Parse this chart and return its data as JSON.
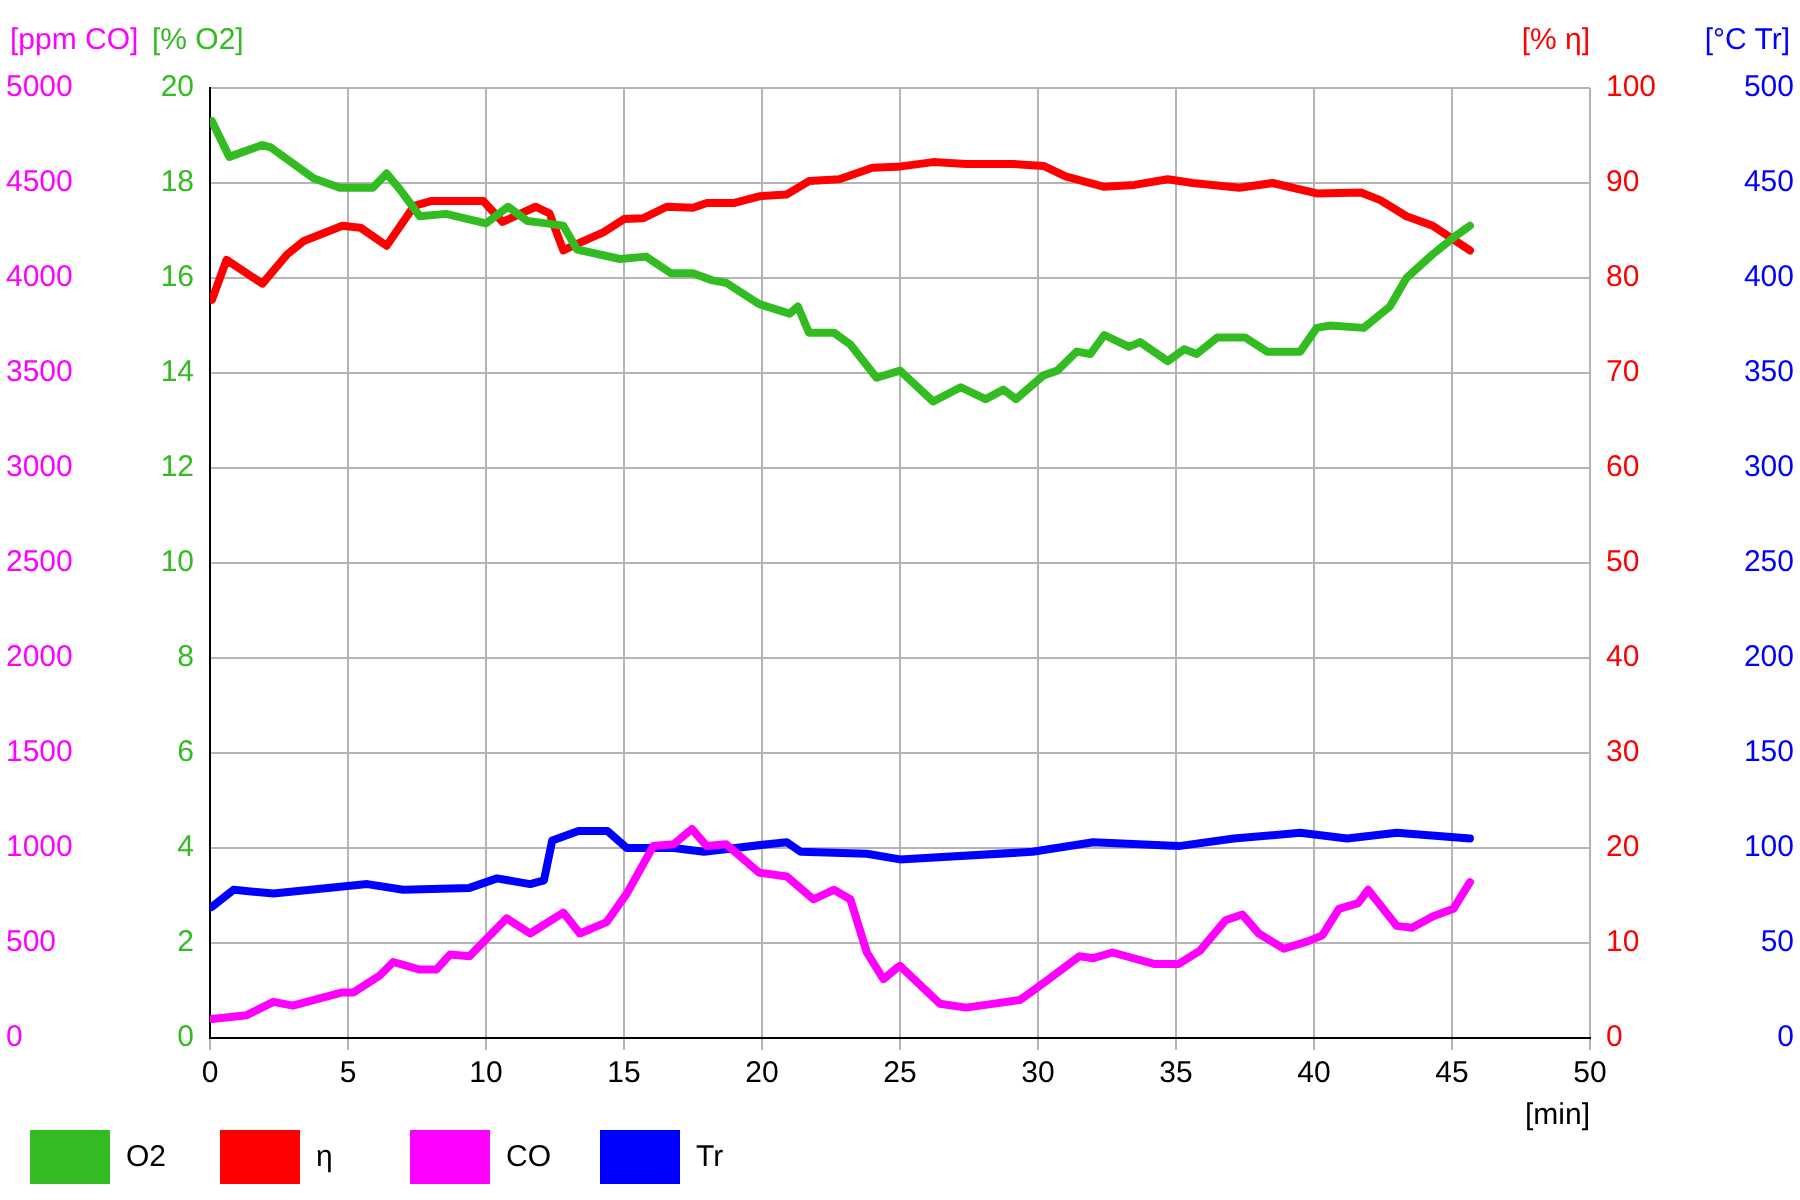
{
  "chart_data": [
    {
      "type": "line",
      "xlabel": "[min]",
      "ylabel": "[% O2]",
      "y2label": "[% η]",
      "xlim": [
        0,
        50
      ],
      "xticks": [
        0,
        5,
        10,
        15,
        20,
        25,
        30,
        35,
        40,
        45,
        50
      ],
      "ylim": [
        0,
        20
      ],
      "yticks": [
        0,
        2,
        4,
        6,
        8,
        10,
        12,
        14,
        16,
        18,
        20
      ],
      "y2lim": [
        0,
        100
      ],
      "y2ticks": [
        0,
        10,
        20,
        30,
        40,
        50,
        60,
        70,
        80,
        90,
        100
      ],
      "grid": true,
      "legend": "bottom",
      "series": [
        {
          "name": "O2",
          "color": "#33bb22",
          "x": [
            0.07,
            0.7,
            1.9,
            2.2,
            3.75,
            4.7,
            5.9,
            6.4,
            6.9,
            7.6,
            8.55,
            10.0,
            10.8,
            11.5,
            12.2,
            12.8,
            13.3,
            14.85,
            15.8,
            16.7,
            17.5,
            18.2,
            18.7,
            19.9,
            21.0,
            21.3,
            21.7,
            22.6,
            23.2,
            24.15,
            25.0,
            26.2,
            27.2,
            28.1,
            28.75,
            29.2,
            30.2,
            30.7,
            31.4,
            31.9,
            32.4,
            33.3,
            33.7,
            34.7,
            35.3,
            35.75,
            36.5,
            37.5,
            38.3,
            39.5,
            40.1,
            40.6,
            41.8,
            42.75,
            43.35,
            44.3,
            45.05,
            45.65
          ],
          "values": [
            19.3,
            18.55,
            18.8,
            18.75,
            18.1,
            17.9,
            17.9,
            18.2,
            17.85,
            17.3,
            17.35,
            17.15,
            17.5,
            17.2,
            17.15,
            17.1,
            16.6,
            16.4,
            16.45,
            16.1,
            16.1,
            15.95,
            15.9,
            15.45,
            15.25,
            15.4,
            14.85,
            14.85,
            14.6,
            13.9,
            14.05,
            13.4,
            13.7,
            13.45,
            13.65,
            13.45,
            13.95,
            14.05,
            14.45,
            14.4,
            14.8,
            14.55,
            14.65,
            14.25,
            14.5,
            14.4,
            14.75,
            14.75,
            14.45,
            14.45,
            14.95,
            15.0,
            14.95,
            15.4,
            16.0,
            16.5,
            16.85,
            17.1
          ]
        },
        {
          "name": "η",
          "color": "#ff0000",
          "axis": "y2",
          "x": [
            0.07,
            0.6,
            1.9,
            2.8,
            3.4,
            4.8,
            5.45,
            6.4,
            7.4,
            8.0,
            9.9,
            10.6,
            11.8,
            12.3,
            12.8,
            13.3,
            14.25,
            15.0,
            15.7,
            16.55,
            17.5,
            18.0,
            19.0,
            19.9,
            20.9,
            21.7,
            22.8,
            24.0,
            24.9,
            26.2,
            27.4,
            29.1,
            30.2,
            31.0,
            32.4,
            33.5,
            34.7,
            35.6,
            37.3,
            38.5,
            40.1,
            41.7,
            42.4,
            43.35,
            44.3,
            45.65
          ],
          "values": [
            77.7,
            81.9,
            79.4,
            82.5,
            83.9,
            85.5,
            85.3,
            83.4,
            87.6,
            88.1,
            88.1,
            85.9,
            87.5,
            86.8,
            82.9,
            83.6,
            84.8,
            86.2,
            86.3,
            87.5,
            87.4,
            87.9,
            87.9,
            88.6,
            88.8,
            90.2,
            90.4,
            91.6,
            91.7,
            92.2,
            92.0,
            92.0,
            91.8,
            90.7,
            89.6,
            89.8,
            90.4,
            90.0,
            89.5,
            90.0,
            88.9,
            89.0,
            88.2,
            86.5,
            85.5,
            82.9
          ]
        }
      ]
    },
    {
      "type": "line",
      "ylabel": "[ppm CO]",
      "y2label": "[°C Tr]",
      "xlim": [
        0,
        50
      ],
      "ylim": [
        0,
        5000
      ],
      "yticks": [
        0,
        500,
        1000,
        1500,
        2000,
        2500,
        3000,
        3500,
        4000,
        4500,
        5000
      ],
      "y2lim": [
        0,
        500
      ],
      "y2ticks": [
        0,
        50,
        100,
        150,
        200,
        250,
        300,
        350,
        400,
        450,
        500
      ],
      "tick_labels": "y",
      "legend": "bottom",
      "series": [
        {
          "name": "CO",
          "color": "#ff00ff",
          "x": [
            0.07,
            1.33,
            2.3,
            3.0,
            4.8,
            5.2,
            6.16,
            6.64,
            7.6,
            8.2,
            8.7,
            9.4,
            10.75,
            11.6,
            12.8,
            13.4,
            14.37,
            15.1,
            16.06,
            16.8,
            17.46,
            18.0,
            18.7,
            19.9,
            20.9,
            21.86,
            22.6,
            23.2,
            23.8,
            24.4,
            24.9,
            25.0,
            26.45,
            27.4,
            29.35,
            30.3,
            31.5,
            32.0,
            32.7,
            34.2,
            35.1,
            35.87,
            36.8,
            37.4,
            38.0,
            38.9,
            39.8,
            40.3,
            40.9,
            41.6,
            41.96,
            43.0,
            43.55,
            44.3,
            45.05,
            45.65
          ],
          "values": [
            100,
            120,
            190,
            170,
            240,
            240,
            330,
            400,
            360,
            360,
            440,
            430,
            630,
            550,
            660,
            550,
            610,
            760,
            1010,
            1020,
            1100,
            1010,
            1020,
            870,
            850,
            730,
            780,
            730,
            450,
            310,
            370,
            380,
            180,
            160,
            200,
            300,
            430,
            420,
            450,
            390,
            390,
            460,
            620,
            650,
            550,
            470,
            510,
            540,
            680,
            710,
            780,
            590,
            580,
            640,
            680,
            820
          ]
        },
        {
          "name": "Tr",
          "color": "#0000ff",
          "axis": "y2",
          "x": [
            0.07,
            0.85,
            2.3,
            5.7,
            7.0,
            9.4,
            10.4,
            11.6,
            12.1,
            12.4,
            13.35,
            14.4,
            15.1,
            16.8,
            17.9,
            20.2,
            20.9,
            21.4,
            23.8,
            25.0,
            29.8,
            32.0,
            35.1,
            37.1,
            39.5,
            41.2,
            43.0,
            45.65
          ],
          "values": [
            69,
            78,
            76,
            81,
            78,
            79,
            84,
            81,
            83,
            104,
            109,
            109,
            100,
            100,
            98,
            102,
            103,
            98,
            97,
            94,
            98,
            103,
            101,
            105,
            108,
            105,
            108,
            105
          ]
        }
      ]
    }
  ]
}
